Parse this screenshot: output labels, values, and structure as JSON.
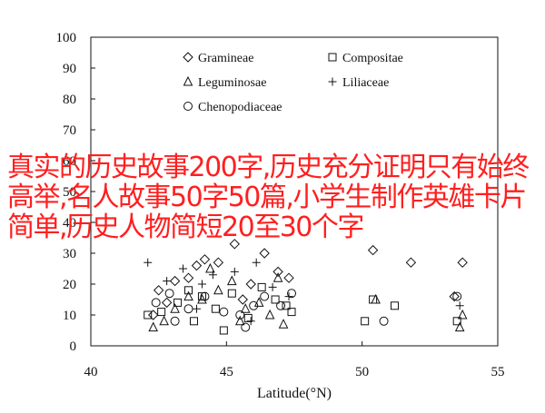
{
  "overlay_text": "真实的历史故事200字,历史充分证明只有始终高举,名人故事50字50篇,小学生制作英雄卡片简单,历史人物简短20至30个字",
  "chart_data": {
    "type": "scatter",
    "xlabel": "Latitude(°N)",
    "ylabel": "",
    "xlim": [
      40,
      55
    ],
    "ylim": [
      0,
      100
    ],
    "xticks": [
      40,
      45,
      50,
      55
    ],
    "yticks": [
      0,
      10,
      20,
      30,
      40,
      50,
      60,
      70,
      80,
      90,
      100
    ],
    "grid": false,
    "legend_position": "top-center",
    "series": [
      {
        "name": "Gramineae",
        "marker": "diamond",
        "points": [
          [
            42.3,
            10
          ],
          [
            42.8,
            14
          ],
          [
            43.1,
            21
          ],
          [
            43.6,
            22
          ],
          [
            44.2,
            28
          ],
          [
            44.7,
            27
          ],
          [
            45.3,
            33
          ],
          [
            45.9,
            20
          ],
          [
            46.4,
            30
          ],
          [
            46.9,
            24
          ],
          [
            47.3,
            22
          ],
          [
            50.4,
            31
          ],
          [
            51.8,
            27
          ],
          [
            53.7,
            27
          ],
          [
            53.4,
            16
          ],
          [
            42.5,
            18
          ],
          [
            43.9,
            26
          ],
          [
            45.6,
            15
          ]
        ]
      },
      {
        "name": "Compositae",
        "marker": "square",
        "points": [
          [
            42.1,
            10
          ],
          [
            42.6,
            11
          ],
          [
            43.2,
            14
          ],
          [
            43.6,
            18
          ],
          [
            44.1,
            16
          ],
          [
            44.6,
            12
          ],
          [
            45.2,
            17
          ],
          [
            45.8,
            9
          ],
          [
            46.3,
            19
          ],
          [
            46.8,
            15
          ],
          [
            47.2,
            13
          ],
          [
            47.4,
            11
          ],
          [
            50.1,
            8
          ],
          [
            50.4,
            15
          ],
          [
            51.2,
            13
          ],
          [
            53.5,
            8
          ],
          [
            44.9,
            5
          ],
          [
            43.8,
            8
          ]
        ]
      },
      {
        "name": "Leguminosae",
        "marker": "triangle",
        "points": [
          [
            42.3,
            6
          ],
          [
            42.7,
            8
          ],
          [
            43.1,
            12
          ],
          [
            43.6,
            16
          ],
          [
            44.1,
            15
          ],
          [
            44.7,
            18
          ],
          [
            45.2,
            21
          ],
          [
            45.7,
            12
          ],
          [
            46.2,
            14
          ],
          [
            46.6,
            10
          ],
          [
            46.9,
            22
          ],
          [
            47.1,
            7
          ],
          [
            50.5,
            15
          ],
          [
            53.7,
            10
          ],
          [
            53.6,
            6
          ],
          [
            44.4,
            25
          ],
          [
            45.5,
            8
          ]
        ]
      },
      {
        "name": "Liliaceae",
        "marker": "plus",
        "points": [
          [
            42.1,
            27
          ],
          [
            42.8,
            21
          ],
          [
            43.4,
            25
          ],
          [
            44.1,
            20
          ],
          [
            44.5,
            23
          ],
          [
            45.3,
            24
          ],
          [
            46.1,
            27
          ],
          [
            46.7,
            19
          ],
          [
            47.3,
            16
          ],
          [
            53.6,
            13
          ],
          [
            43.9,
            12
          ],
          [
            45.9,
            8
          ]
        ]
      },
      {
        "name": "Chenopodiaceae",
        "marker": "circle",
        "points": [
          [
            42.4,
            14
          ],
          [
            42.9,
            17
          ],
          [
            43.6,
            12
          ],
          [
            44.2,
            16
          ],
          [
            44.9,
            11
          ],
          [
            45.5,
            10
          ],
          [
            46.0,
            13
          ],
          [
            46.4,
            16
          ],
          [
            47.0,
            13
          ],
          [
            47.4,
            17
          ],
          [
            50.8,
            8
          ],
          [
            53.5,
            16
          ],
          [
            45.7,
            6
          ],
          [
            43.1,
            8
          ]
        ]
      }
    ]
  }
}
